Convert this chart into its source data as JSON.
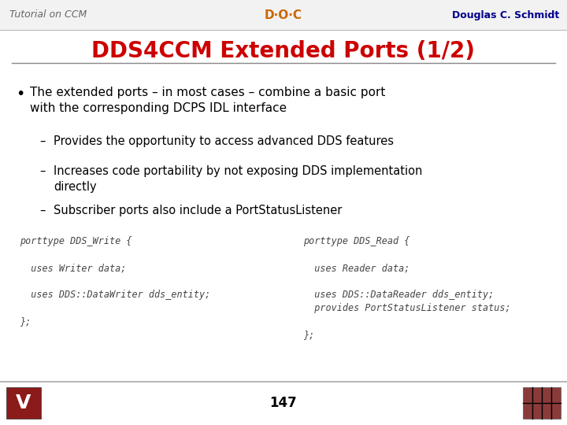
{
  "bg_color": "#ffffff",
  "header_left": "Tutorial on CCM",
  "header_right": "Douglas C. Schmidt",
  "header_color_left": "#666666",
  "header_color_right": "#00008B",
  "title": "DDS4CCM Extended Ports (1/2)",
  "title_color": "#cc0000",
  "bullet_main": "The extended ports – in most cases – combine a basic port\nwith the corresponding DCPS IDL interface",
  "sub_bullets": [
    "Provides the opportunity to access advanced DDS features",
    "Increases code portability by not exposing DDS implementation\ndirectly",
    "Subscriber ports also include a PortStatusListener"
  ],
  "code_left": [
    "porttype DDS_Write {",
    "",
    "  uses Writer data;",
    "",
    "  uses DDS::DataWriter dds_entity;",
    "",
    "};"
  ],
  "code_right": [
    "porttype DDS_Read {",
    "",
    "  uses Reader data;",
    "",
    "  uses DDS::DataReader dds_entity;",
    "  provides PortStatusListener status;",
    "",
    "};"
  ],
  "page_number": "147",
  "separator_color": "#999999",
  "code_color": "#444444",
  "text_color": "#000000",
  "title_fontsize": 20,
  "header_fontsize": 9,
  "body_fontsize": 11,
  "sub_fontsize": 10.5,
  "code_fontsize": 8.5,
  "page_fontsize": 12
}
